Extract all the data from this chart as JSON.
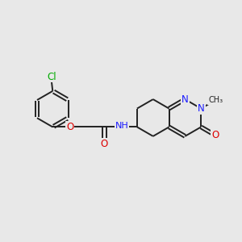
{
  "bg_color": "#e8e8e8",
  "bond_color": "#222222",
  "bond_width": 1.4,
  "atom_colors": {
    "C": "#222222",
    "N": "#1a1aff",
    "O": "#dd0000",
    "Cl": "#00aa00",
    "H": "#222222"
  },
  "font_size": 8.5,
  "fig_width": 3.0,
  "fig_height": 3.0,
  "dpi": 100,
  "xlim": [
    0,
    10
  ],
  "ylim": [
    0,
    10
  ]
}
